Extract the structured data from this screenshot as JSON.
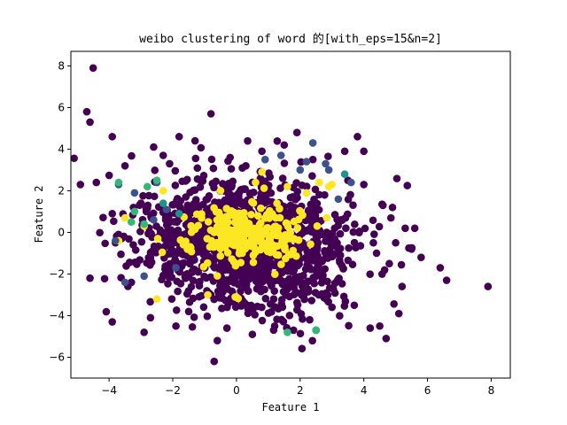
{
  "chart_data": {
    "type": "scatter",
    "title": "weibo clustering of word 的[with_eps=15&n=2]",
    "xlabel": "Feature 1",
    "ylabel": "Feature 2",
    "xlim": [
      -5.2,
      8.6
    ],
    "ylim": [
      -7.0,
      8.7
    ],
    "xticks": [
      -4,
      -2,
      0,
      2,
      4,
      6,
      8
    ],
    "yticks": [
      -6,
      -4,
      -2,
      0,
      2,
      4,
      6,
      8
    ],
    "xtick_labels": [
      "−4",
      "−2",
      "0",
      "2",
      "4",
      "6",
      "8"
    ],
    "ytick_labels": [
      "−6",
      "−4",
      "−2",
      "0",
      "2",
      "4",
      "6",
      "8"
    ],
    "grid": false,
    "colormap": "viridis",
    "colors": {
      "cluster_dark": "#440154",
      "cluster_blue": "#3b528b",
      "cluster_teal": "#21918c",
      "cluster_green": "#35b779",
      "cluster_yellow": "#fde725"
    },
    "series": [
      {
        "color": "#440154",
        "n_points": 1400,
        "distribution": {
          "center": [
            0.3,
            -0.5
          ],
          "std": [
            1.6,
            1.5
          ],
          "rotation_deg": -18
        },
        "outliers": [
          [
            -4.5,
            7.9
          ],
          [
            -4.7,
            5.8
          ],
          [
            -4.6,
            5.3
          ],
          [
            -3.9,
            4.6
          ],
          [
            -0.8,
            5.7
          ],
          [
            -4.9,
            2.3
          ],
          [
            -4.4,
            2.4
          ],
          [
            -4.6,
            -2.2
          ],
          [
            7.9,
            -2.6
          ],
          [
            6.6,
            -2.3
          ],
          [
            6.4,
            -1.7
          ],
          [
            5.6,
            0.2
          ],
          [
            5.3,
            0.2
          ],
          [
            5.0,
            -0.5
          ],
          [
            4.9,
            1.2
          ],
          [
            4.7,
            -5.1
          ],
          [
            4.5,
            -4.5
          ],
          [
            4.2,
            -4.6
          ],
          [
            5.1,
            -3.9
          ],
          [
            4.6,
            1.3
          ],
          [
            -3.9,
            -4.3
          ],
          [
            -2.9,
            -4.8
          ],
          [
            -2.7,
            -4.1
          ],
          [
            -1.9,
            -4.5
          ],
          [
            -0.6,
            -5.2
          ],
          [
            -0.7,
            -6.2
          ],
          [
            2.5,
            -4.7
          ],
          [
            0.5,
            -4.9
          ],
          [
            1.5,
            4.2
          ],
          [
            1.9,
            4.8
          ],
          [
            3.8,
            4.6
          ],
          [
            3.4,
            3.9
          ],
          [
            4.0,
            3.9
          ],
          [
            -1.8,
            4.6
          ],
          [
            -1.3,
            4.4
          ],
          [
            -2.3,
            3.7
          ],
          [
            -3.5,
            3.2
          ],
          [
            -2.6,
            4.1
          ],
          [
            4.0,
            2.3
          ],
          [
            3.5,
            2.5
          ],
          [
            4.3,
            -0.5
          ],
          [
            4.4,
            -1.0
          ],
          [
            5.8,
            -1.2
          ],
          [
            5.5,
            -0.8
          ],
          [
            4.8,
            -1.5
          ],
          [
            5.2,
            -2.6
          ],
          [
            3.0,
            -3.6
          ],
          [
            3.7,
            -3.5
          ],
          [
            2.3,
            -4.2
          ],
          [
            1.2,
            -4.5
          ],
          [
            -0.3,
            -4.6
          ],
          [
            -1.5,
            -3.8
          ],
          [
            -3.3,
            -2.4
          ],
          [
            -3.8,
            -0.5
          ],
          [
            -3.9,
            0.9
          ],
          [
            -3.0,
            1.4
          ],
          [
            -2.1,
            3.3
          ],
          [
            -0.2,
            3.6
          ],
          [
            0.8,
            3.9
          ],
          [
            2.4,
            3.5
          ]
        ]
      },
      {
        "color": "#fde725",
        "n_points": 260,
        "distribution": {
          "center": [
            0.3,
            -0.1
          ],
          "std": [
            0.9,
            0.75
          ],
          "rotation_deg": 0
        },
        "outliers": [
          [
            2.6,
            2.4
          ],
          [
            2.9,
            2.2
          ],
          [
            0.8,
            2.9
          ],
          [
            0.6,
            2.4
          ],
          [
            -0.5,
            2.0
          ],
          [
            -2.3,
            2.0
          ],
          [
            -3.5,
            0.7
          ],
          [
            -3.7,
            -0.4
          ],
          [
            -2.9,
            0.3
          ],
          [
            1.6,
            2.2
          ],
          [
            2.2,
            1.9
          ],
          [
            -0.9,
            -3.0
          ],
          [
            -2.5,
            -3.2
          ],
          [
            3.0,
            2.3
          ]
        ]
      },
      {
        "color": "#3b528b",
        "n_points": 0,
        "outliers": [
          [
            2.4,
            4.3
          ],
          [
            1.4,
            3.7
          ],
          [
            0.9,
            3.5
          ],
          [
            2.2,
            3.4
          ],
          [
            2.8,
            3.3
          ],
          [
            2.0,
            3.0
          ],
          [
            3.6,
            2.4
          ],
          [
            -3.7,
            2.3
          ],
          [
            -3.8,
            -0.4
          ],
          [
            -3.5,
            -2.4
          ],
          [
            -2.9,
            -2.1
          ],
          [
            -1.9,
            -1.7
          ],
          [
            -2.5,
            2.4
          ],
          [
            -3.2,
            1.9
          ],
          [
            3.2,
            1.6
          ],
          [
            2.9,
            3.0
          ],
          [
            -2.2,
            1.1
          ],
          [
            -2.6,
            0.6
          ]
        ]
      },
      {
        "color": "#21918c",
        "n_points": 0,
        "outliers": [
          [
            -2.3,
            1.4
          ],
          [
            -1.8,
            0.9
          ],
          [
            3.4,
            2.8
          ]
        ]
      },
      {
        "color": "#35b779",
        "n_points": 0,
        "outliers": [
          [
            -3.7,
            2.4
          ],
          [
            -3.2,
            1.0
          ],
          [
            -2.5,
            2.5
          ],
          [
            -3.3,
            0.5
          ],
          [
            1.6,
            -4.8
          ],
          [
            2.5,
            -4.7
          ],
          [
            -2.9,
            0.4
          ],
          [
            -2.8,
            2.2
          ]
        ]
      }
    ]
  }
}
